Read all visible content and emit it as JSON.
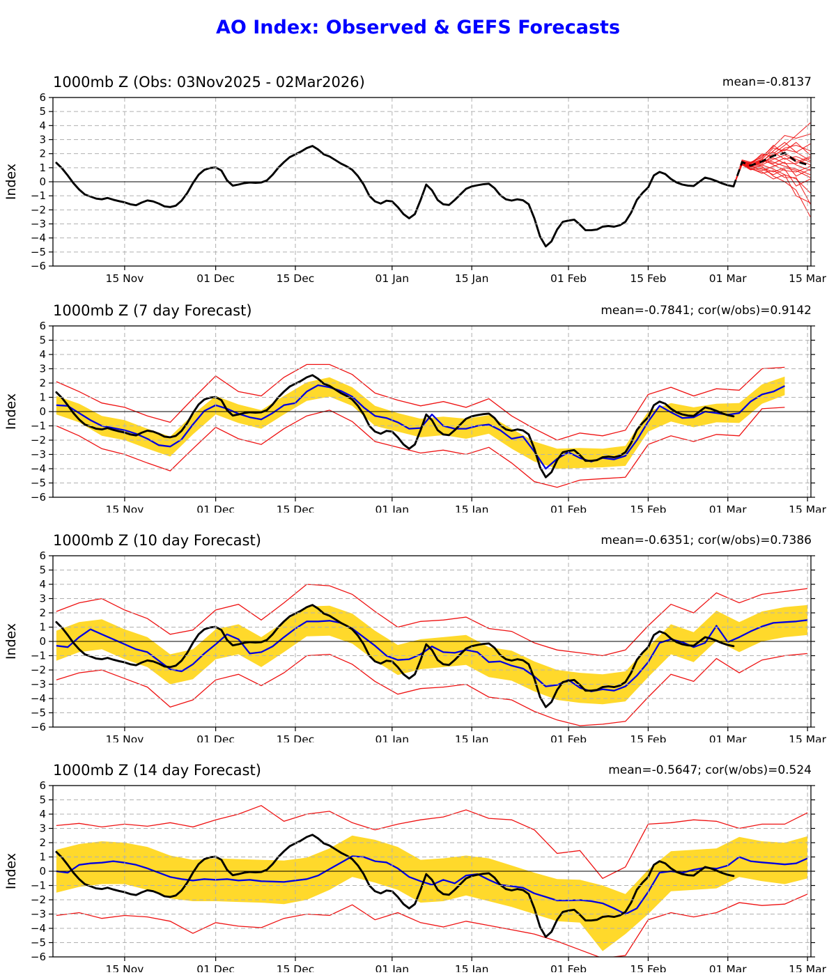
{
  "figure": {
    "title": "AO Index: Observed & GEFS Forecasts"
  },
  "chart_data": {
    "type": "line",
    "title": "AO Index: Observed & GEFS Forecasts",
    "ylabel": "Index",
    "ylim": [
      -6,
      6
    ],
    "grid": "dashed",
    "x_unit": "days since 03 Nov 2025",
    "day_min": -0.6,
    "day_max": 132.6,
    "x_ticks": [
      {
        "day": 12,
        "label": "15 Nov"
      },
      {
        "day": 28,
        "label": "01 Dec"
      },
      {
        "day": 42,
        "label": "15 Dec"
      },
      {
        "day": 59,
        "label": "01 Jan"
      },
      {
        "day": 73,
        "label": "15 Jan"
      },
      {
        "day": 90,
        "label": "01 Feb"
      },
      {
        "day": 104,
        "label": "15 Feb"
      },
      {
        "day": 118,
        "label": "01 Mar"
      },
      {
        "day": 132,
        "label": "15 Mar"
      }
    ],
    "y_tick_step": 1,
    "colors": {
      "obs": "#000000",
      "forecast_mean": "#0000e0",
      "envelope": "#ee1111",
      "spread_band": "#ffd92b",
      "grid": "#b0b0b0",
      "title": "#0000ff"
    },
    "obs": {
      "x0": 0,
      "dx": 1,
      "y": [
        1.35,
        0.95,
        0.45,
        -0.1,
        -0.55,
        -0.9,
        -1.05,
        -1.2,
        -1.25,
        -1.15,
        -1.28,
        -1.38,
        -1.47,
        -1.6,
        -1.67,
        -1.48,
        -1.33,
        -1.4,
        -1.55,
        -1.75,
        -1.8,
        -1.7,
        -1.35,
        -0.8,
        -0.1,
        0.5,
        0.85,
        0.98,
        1.02,
        0.8,
        0.1,
        -0.28,
        -0.2,
        -0.1,
        -0.05,
        -0.08,
        -0.05,
        0.1,
        0.5,
        1.0,
        1.4,
        1.75,
        1.95,
        2.15,
        2.4,
        2.55,
        2.3,
        1.95,
        1.8,
        1.55,
        1.3,
        1.1,
        0.85,
        0.4,
        -0.2,
        -1.0,
        -1.4,
        -1.55,
        -1.35,
        -1.4,
        -1.8,
        -2.3,
        -2.6,
        -2.3,
        -1.3,
        -0.2,
        -0.6,
        -1.3,
        -1.6,
        -1.65,
        -1.3,
        -0.9,
        -0.5,
        -0.33,
        -0.25,
        -0.18,
        -0.14,
        -0.45,
        -0.95,
        -1.25,
        -1.34,
        -1.25,
        -1.32,
        -1.6,
        -2.6,
        -3.9,
        -4.6,
        -4.25,
        -3.4,
        -2.85,
        -2.76,
        -2.7,
        -3.05,
        -3.45,
        -3.45,
        -3.4,
        -3.2,
        -3.15,
        -3.2,
        -3.1,
        -2.85,
        -2.2,
        -1.3,
        -0.8,
        -0.4,
        0.45,
        0.7,
        0.55,
        0.2,
        -0.05,
        -0.2,
        -0.28,
        -0.3,
        0.0,
        0.3,
        0.2,
        0.05,
        -0.12,
        -0.25,
        -0.33
      ]
    },
    "panels": [
      {
        "id": "obs",
        "title": "1000mb Z (Obs: 03Nov2025 - 02Mar2026)",
        "stats": "mean=-0.8137",
        "ens": {
          "x": [
            119,
            120.5,
            122,
            124,
            126,
            128,
            130,
            132.5
          ],
          "mean": [
            -0.33,
            1.4,
            1.15,
            1.45,
            1.85,
            2.05,
            1.45,
            1.15
          ],
          "members": [
            [
              -0.33,
              1.3,
              1.1,
              1.5,
              2.0,
              2.6,
              3.3,
              4.2
            ],
            [
              -0.33,
              1.45,
              1.3,
              1.8,
              2.5,
              3.3,
              3.1,
              3.4
            ],
            [
              -0.33,
              1.5,
              1.2,
              1.4,
              2.2,
              2.8,
              2.1,
              2.7
            ],
            [
              -0.33,
              1.35,
              1.0,
              1.6,
              2.4,
              2.2,
              2.8,
              1.9
            ],
            [
              -0.33,
              1.4,
              1.25,
              2.0,
              1.8,
              2.4,
              2.6,
              2.2
            ],
            [
              -0.33,
              1.55,
              1.4,
              1.7,
              2.6,
              2.0,
              1.6,
              1.2
            ],
            [
              -0.33,
              1.3,
              1.15,
              1.3,
              1.9,
              2.3,
              2.1,
              1.5
            ],
            [
              -0.33,
              1.25,
              0.9,
              1.2,
              1.6,
              1.9,
              1.4,
              1.8
            ],
            [
              -0.33,
              1.45,
              1.35,
              1.9,
              2.1,
              1.6,
              1.8,
              1.4
            ],
            [
              -0.33,
              1.5,
              1.2,
              1.5,
              1.3,
              1.7,
              1.2,
              0.8
            ],
            [
              -0.33,
              1.35,
              1.05,
              1.4,
              1.7,
              1.3,
              1.3,
              1.7
            ],
            [
              -0.33,
              1.4,
              1.2,
              1.6,
              1.2,
              0.8,
              0.7,
              1.1
            ],
            [
              -0.33,
              1.3,
              1.0,
              0.8,
              1.1,
              1.4,
              0.4,
              0.9
            ],
            [
              -0.33,
              1.2,
              0.85,
              1.0,
              0.7,
              1.0,
              0.8,
              0.3
            ],
            [
              -0.33,
              1.45,
              1.15,
              1.2,
              0.9,
              0.5,
              0.2,
              -0.8
            ],
            [
              -0.33,
              1.35,
              1.1,
              0.9,
              0.5,
              0.9,
              -0.3,
              0.2
            ],
            [
              -0.33,
              1.25,
              0.95,
              0.6,
              0.8,
              0.3,
              0.3,
              -1.6
            ],
            [
              -0.33,
              1.4,
              1.05,
              1.1,
              0.4,
              0.0,
              -0.6,
              -2.5
            ],
            [
              -0.33,
              1.3,
              0.9,
              0.7,
              0.2,
              0.5,
              -1.0,
              -1.5
            ],
            [
              -0.33,
              1.5,
              1.3,
              1.6,
              1.4,
              1.1,
              0.9,
              0.5
            ]
          ]
        }
      },
      {
        "id": "f7",
        "title": "1000mb Z (7 day Forecast)",
        "stats": "mean=-0.7841; cor(w/obs)=0.9142",
        "blue": {
          "x0": 0,
          "dx": 2,
          "y": [
            0.45,
            0.4,
            -0.1,
            -0.6,
            -1.0,
            -1.15,
            -1.3,
            -1.55,
            -1.9,
            -2.35,
            -2.45,
            -1.95,
            -0.9,
            0.05,
            0.45,
            0.2,
            -0.15,
            -0.4,
            -0.55,
            -0.1,
            0.45,
            0.6,
            1.4,
            1.85,
            1.7,
            1.45,
            1.05,
            0.3,
            -0.3,
            -0.45,
            -0.75,
            -1.2,
            -1.15,
            -0.2,
            -1.0,
            -1.2,
            -1.2,
            -1.0,
            -0.9,
            -1.3,
            -1.9,
            -1.75,
            -2.8,
            -4.0,
            -3.3,
            -2.85,
            -3.25,
            -3.5,
            -3.25,
            -3.35,
            -3.1,
            -2.0,
            -0.7,
            0.4,
            -0.05,
            -0.45,
            -0.4,
            0.0,
            -0.1,
            -0.22,
            -0.1,
            0.7,
            1.2,
            1.4,
            1.8
          ]
        },
        "band_hi": {
          "x0": 0,
          "dx": 4,
          "y": [
            1.1,
            0.55,
            -0.3,
            -0.6,
            -1.2,
            -1.75,
            -0.2,
            1.1,
            0.5,
            0.1,
            1.1,
            2.05,
            2.4,
            1.7,
            0.4,
            -0.1,
            -0.5,
            -0.35,
            -0.5,
            -0.25,
            -1.2,
            -2.1,
            -2.6,
            -2.55,
            -2.6,
            -2.4,
            0.0,
            0.6,
            0.3,
            0.55,
            0.6,
            1.9,
            2.45
          ]
        },
        "band_lo": {
          "x0": 0,
          "dx": 4,
          "y": [
            -0.2,
            -0.75,
            -1.7,
            -2.0,
            -2.6,
            -3.15,
            -1.6,
            -0.2,
            -0.8,
            -1.2,
            -0.2,
            0.75,
            1.05,
            0.4,
            -1.0,
            -1.4,
            -1.8,
            -1.65,
            -1.9,
            -1.55,
            -2.6,
            -3.5,
            -4.0,
            -3.95,
            -3.9,
            -3.8,
            -1.4,
            -0.7,
            -1.1,
            -0.75,
            -0.8,
            0.55,
            1.15
          ]
        },
        "red_hi": {
          "x0": 0,
          "dx": 4,
          "y": [
            2.1,
            1.4,
            0.6,
            0.3,
            -0.3,
            -0.75,
            0.9,
            2.5,
            1.4,
            1.1,
            2.4,
            3.3,
            3.3,
            2.6,
            1.3,
            0.8,
            0.4,
            0.7,
            0.3,
            0.9,
            -0.3,
            -1.2,
            -2.0,
            -1.5,
            -1.7,
            -1.3,
            1.2,
            1.7,
            1.1,
            1.6,
            1.5,
            3.0,
            3.1
          ]
        },
        "red_lo": {
          "x0": 0,
          "dx": 4,
          "y": [
            -1.0,
            -1.7,
            -2.6,
            -3.0,
            -3.6,
            -4.15,
            -2.6,
            -1.1,
            -1.9,
            -2.3,
            -1.2,
            -0.3,
            0.1,
            -0.7,
            -2.1,
            -2.5,
            -2.9,
            -2.7,
            -3.0,
            -2.5,
            -3.6,
            -4.9,
            -5.3,
            -4.8,
            -4.7,
            -4.6,
            -2.3,
            -1.7,
            -2.1,
            -1.6,
            -1.7,
            0.2,
            0.3
          ]
        }
      },
      {
        "id": "f10",
        "title": "1000mb Z (10 day Forecast)",
        "stats": "mean=-0.6351; cor(w/obs)=0.7386",
        "blue": {
          "x0": 0,
          "dx": 2,
          "y": [
            -0.3,
            -0.4,
            0.3,
            0.85,
            0.5,
            0.15,
            -0.2,
            -0.55,
            -0.75,
            -1.35,
            -1.95,
            -2.1,
            -1.6,
            -0.85,
            -0.2,
            0.5,
            0.15,
            -0.85,
            -0.75,
            -0.35,
            0.3,
            0.9,
            1.4,
            1.4,
            1.45,
            1.3,
            0.9,
            0.3,
            -0.3,
            -1.0,
            -1.3,
            -1.25,
            -0.9,
            -0.35,
            -0.75,
            -0.8,
            -0.6,
            -0.75,
            -1.45,
            -1.4,
            -1.7,
            -1.9,
            -2.45,
            -3.15,
            -3.05,
            -2.7,
            -3.25,
            -3.5,
            -3.35,
            -3.45,
            -3.15,
            -2.4,
            -1.45,
            -0.1,
            0.15,
            -0.05,
            -0.4,
            -0.1,
            1.1,
            -0.05,
            0.3,
            0.7,
            1.05,
            1.3,
            1.35,
            1.4,
            1.5
          ]
        },
        "band_hi": {
          "x0": 0,
          "dx": 4,
          "y": [
            0.75,
            1.35,
            1.55,
            0.85,
            0.3,
            -0.9,
            -0.55,
            0.85,
            1.2,
            0.3,
            1.35,
            2.45,
            2.5,
            1.95,
            0.75,
            -0.25,
            0.15,
            0.3,
            0.45,
            -0.4,
            -0.65,
            -1.4,
            -2.0,
            -2.2,
            -2.3,
            -2.1,
            -0.4,
            1.2,
            0.65,
            2.15,
            1.35,
            2.1,
            2.4,
            2.55
          ]
        },
        "band_lo": {
          "x0": 0,
          "dx": 4,
          "y": [
            -1.35,
            -0.75,
            -0.55,
            -1.25,
            -1.8,
            -3.0,
            -2.65,
            -1.25,
            -0.9,
            -1.8,
            -0.75,
            0.35,
            0.4,
            -0.15,
            -1.35,
            -2.35,
            -1.95,
            -1.8,
            -1.65,
            -2.5,
            -2.75,
            -3.5,
            -4.1,
            -4.3,
            -4.4,
            -4.2,
            -2.5,
            -0.9,
            -1.45,
            0.05,
            -0.75,
            0.0,
            0.3,
            0.45
          ]
        },
        "red_hi": {
          "x0": 0,
          "dx": 4,
          "y": [
            2.1,
            2.7,
            3.0,
            2.2,
            1.6,
            0.5,
            0.8,
            2.2,
            2.6,
            1.5,
            2.7,
            4.0,
            3.9,
            3.3,
            2.1,
            1.0,
            1.4,
            1.5,
            1.7,
            0.9,
            0.7,
            -0.1,
            -0.6,
            -0.8,
            -1.0,
            -0.6,
            1.1,
            2.6,
            2.0,
            3.4,
            2.7,
            3.3,
            3.5,
            3.7
          ]
        },
        "red_lo": {
          "x0": 0,
          "dx": 4,
          "y": [
            -2.7,
            -2.2,
            -2.0,
            -2.6,
            -3.2,
            -4.6,
            -4.1,
            -2.7,
            -2.3,
            -3.1,
            -2.2,
            -1.0,
            -0.9,
            -1.6,
            -2.8,
            -3.7,
            -3.3,
            -3.2,
            -3.0,
            -3.9,
            -4.1,
            -4.9,
            -5.5,
            -5.9,
            -5.8,
            -5.6,
            -3.9,
            -2.3,
            -2.8,
            -1.2,
            -2.2,
            -1.3,
            -1.0,
            -0.85
          ]
        }
      },
      {
        "id": "f14",
        "title": "1000mb Z (14 day Forecast)",
        "stats": "mean=-0.5647; cor(w/obs)=0.524",
        "blue": {
          "x0": 0,
          "dx": 2,
          "y": [
            0.0,
            -0.1,
            0.45,
            0.55,
            0.6,
            0.7,
            0.6,
            0.45,
            0.2,
            -0.1,
            -0.4,
            -0.55,
            -0.65,
            -0.55,
            -0.6,
            -0.55,
            -0.65,
            -0.6,
            -0.7,
            -0.72,
            -0.75,
            -0.65,
            -0.55,
            -0.3,
            0.15,
            0.6,
            1.05,
            1.0,
            0.7,
            0.62,
            0.2,
            -0.4,
            -0.7,
            -0.95,
            -0.6,
            -0.85,
            -0.3,
            -0.2,
            -0.6,
            -0.95,
            -1.05,
            -1.15,
            -1.55,
            -1.8,
            -2.05,
            -2.05,
            -2.02,
            -2.1,
            -2.25,
            -2.6,
            -3.0,
            -2.6,
            -1.45,
            -0.1,
            0.0,
            -0.1,
            0.1,
            0.25,
            0.18,
            0.4,
            1.0,
            0.7,
            0.62,
            0.55,
            0.48,
            0.55,
            0.9
          ]
        },
        "band_hi": {
          "x0": 0,
          "dx": 4,
          "y": [
            1.5,
            1.9,
            2.1,
            2.0,
            1.7,
            1.1,
            0.8,
            0.9,
            0.85,
            0.8,
            0.75,
            0.95,
            1.6,
            2.5,
            2.2,
            1.7,
            0.8,
            0.9,
            1.1,
            0.9,
            0.4,
            -0.1,
            -0.55,
            -0.6,
            -1.0,
            -1.6,
            0.1,
            1.4,
            1.5,
            1.6,
            2.4,
            2.1,
            2.0,
            2.45
          ]
        },
        "band_lo": {
          "x0": 0,
          "dx": 4,
          "y": [
            -1.5,
            -1.1,
            -0.9,
            -0.9,
            -1.3,
            -1.9,
            -2.1,
            -2.1,
            -2.15,
            -2.2,
            -2.3,
            -2.0,
            -1.3,
            -0.4,
            -0.8,
            -1.3,
            -2.2,
            -2.1,
            -1.7,
            -2.1,
            -2.5,
            -3.0,
            -3.5,
            -3.6,
            -5.6,
            -4.4,
            -3.0,
            -1.4,
            -1.3,
            -1.2,
            -0.4,
            -0.7,
            -0.9,
            -0.5
          ]
        },
        "red_hi": {
          "x0": 0,
          "dx": 4,
          "y": [
            3.2,
            3.35,
            3.1,
            3.3,
            3.15,
            3.4,
            3.1,
            3.6,
            4.0,
            4.6,
            3.5,
            4.0,
            4.2,
            3.4,
            2.9,
            3.3,
            3.6,
            3.8,
            4.3,
            3.7,
            3.6,
            2.9,
            1.25,
            1.45,
            -0.5,
            0.3,
            3.3,
            3.4,
            3.6,
            3.5,
            3.0,
            3.3,
            3.3,
            4.1
          ]
        },
        "red_lo": {
          "x0": 0,
          "dx": 4,
          "y": [
            -3.1,
            -2.9,
            -3.3,
            -3.1,
            -3.2,
            -3.5,
            -4.35,
            -3.6,
            -3.85,
            -3.95,
            -3.3,
            -3.0,
            -3.1,
            -2.35,
            -3.4,
            -2.9,
            -3.6,
            -3.9,
            -3.5,
            -3.8,
            -4.1,
            -4.4,
            -4.9,
            -5.5,
            -6.1,
            -5.9,
            -3.4,
            -2.9,
            -3.2,
            -2.9,
            -2.2,
            -2.4,
            -2.3,
            -1.6
          ]
        }
      }
    ]
  }
}
